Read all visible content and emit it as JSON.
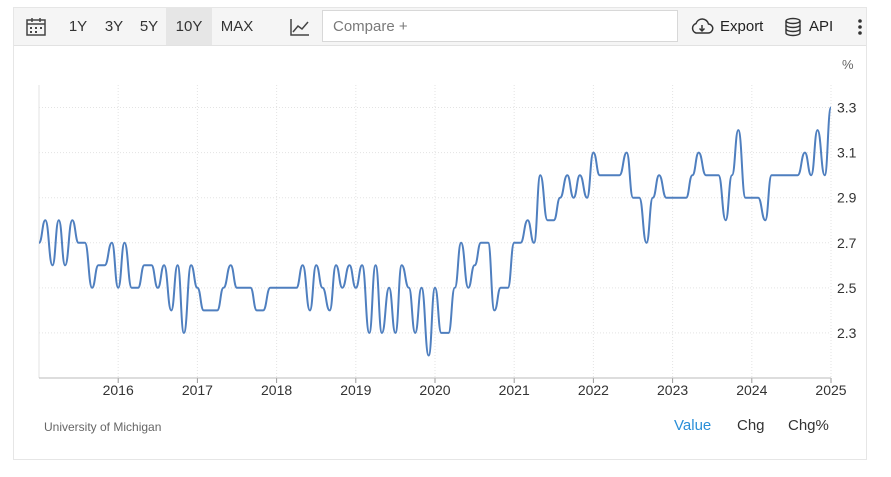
{
  "toolbar": {
    "calendar_icon": "calendar-icon",
    "ranges": [
      "1Y",
      "3Y",
      "5Y",
      "10Y",
      "MAX"
    ],
    "active_range": "10Y",
    "chart_type_icon": "line-chart-icon",
    "compare_placeholder": "Compare +",
    "export_label": "Export",
    "export_icon": "cloud-download-icon",
    "api_label": "API",
    "api_icon": "database-icon",
    "more_icon": "kebab-menu-icon"
  },
  "unit_label": "%",
  "source": "University of Michigan",
  "tabs": [
    "Value",
    "Chg",
    "Chg%"
  ],
  "active_tab": "Value",
  "colors": {
    "line": "#4f7fbf",
    "grid": "#e3e3e3",
    "active_tab": "#2a8fd8"
  },
  "chart_data": {
    "type": "line",
    "title": "",
    "xlabel": "",
    "ylabel": "",
    "ylim": [
      2.1,
      3.4
    ],
    "xlim": [
      2015.0,
      2025.0
    ],
    "yticks": [
      "2.3",
      "2.5",
      "2.7",
      "2.9",
      "3.1",
      "3.3"
    ],
    "xticks": [
      "2016",
      "2017",
      "2018",
      "2019",
      "2020",
      "2021",
      "2022",
      "2023",
      "2024",
      "2025"
    ],
    "grid": true,
    "y_axis_side": "right",
    "series": [
      {
        "x": [
          2015.0,
          2015.08,
          2015.17,
          2015.25,
          2015.33,
          2015.42,
          2015.5,
          2015.58,
          2015.67,
          2015.75,
          2015.83,
          2015.92,
          2016.0,
          2016.08,
          2016.17,
          2016.25,
          2016.33,
          2016.42,
          2016.5,
          2016.58,
          2016.67,
          2016.75,
          2016.83,
          2016.92,
          2017.0,
          2017.08,
          2017.17,
          2017.25,
          2017.33,
          2017.42,
          2017.5,
          2017.58,
          2017.67,
          2017.75,
          2017.83,
          2017.92,
          2018.0,
          2018.08,
          2018.17,
          2018.25,
          2018.33,
          2018.42,
          2018.5,
          2018.58,
          2018.67,
          2018.75,
          2018.83,
          2018.92,
          2019.0,
          2019.08,
          2019.17,
          2019.25,
          2019.33,
          2019.42,
          2019.5,
          2019.58,
          2019.67,
          2019.75,
          2019.83,
          2019.92,
          2020.0,
          2020.08,
          2020.17,
          2020.25,
          2020.33,
          2020.42,
          2020.5,
          2020.58,
          2020.67,
          2020.75,
          2020.83,
          2020.92,
          2021.0,
          2021.08,
          2021.17,
          2021.25,
          2021.33,
          2021.42,
          2021.5,
          2021.58,
          2021.67,
          2021.75,
          2021.83,
          2021.92,
          2022.0,
          2022.08,
          2022.17,
          2022.25,
          2022.33,
          2022.42,
          2022.5,
          2022.58,
          2022.67,
          2022.75,
          2022.83,
          2022.92,
          2023.0,
          2023.08,
          2023.17,
          2023.25,
          2023.33,
          2023.42,
          2023.5,
          2023.58,
          2023.67,
          2023.75,
          2023.83,
          2023.92,
          2024.0,
          2024.08,
          2024.17,
          2024.25,
          2024.33,
          2024.42,
          2024.5,
          2024.58,
          2024.67,
          2024.75,
          2024.83,
          2024.92,
          2025.0
        ],
        "y": [
          2.7,
          2.8,
          2.6,
          2.8,
          2.6,
          2.8,
          2.7,
          2.7,
          2.5,
          2.6,
          2.6,
          2.7,
          2.5,
          2.7,
          2.5,
          2.5,
          2.6,
          2.6,
          2.5,
          2.6,
          2.4,
          2.6,
          2.3,
          2.6,
          2.5,
          2.4,
          2.4,
          2.4,
          2.5,
          2.6,
          2.5,
          2.5,
          2.5,
          2.4,
          2.4,
          2.5,
          2.5,
          2.5,
          2.5,
          2.5,
          2.6,
          2.4,
          2.6,
          2.5,
          2.4,
          2.6,
          2.5,
          2.6,
          2.5,
          2.6,
          2.3,
          2.6,
          2.3,
          2.5,
          2.3,
          2.6,
          2.5,
          2.3,
          2.5,
          2.2,
          2.5,
          2.3,
          2.3,
          2.5,
          2.7,
          2.5,
          2.6,
          2.7,
          2.7,
          2.4,
          2.5,
          2.5,
          2.7,
          2.7,
          2.8,
          2.7,
          3.0,
          2.8,
          2.8,
          2.9,
          3.0,
          2.9,
          3.0,
          2.9,
          3.1,
          3.0,
          3.0,
          3.0,
          3.0,
          3.1,
          2.9,
          2.9,
          2.7,
          2.9,
          3.0,
          2.9,
          2.9,
          2.9,
          2.9,
          3.0,
          3.1,
          3.0,
          3.0,
          3.0,
          2.8,
          3.0,
          3.2,
          2.9,
          2.9,
          2.9,
          2.8,
          3.0,
          3.0,
          3.0,
          3.0,
          3.0,
          3.1,
          3.0,
          3.2,
          3.0,
          3.3
        ]
      }
    ]
  }
}
